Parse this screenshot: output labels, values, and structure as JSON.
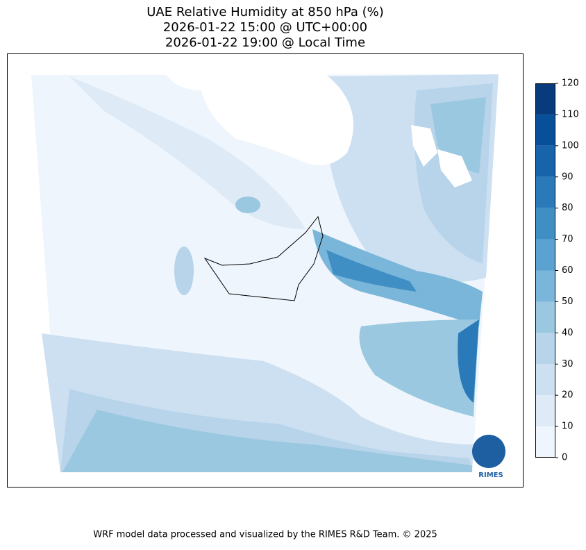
{
  "chart_data": {
    "type": "contour",
    "title": [
      "UAE Relative Humidity at 850 hPa (%)",
      "2026-01-22 15:00 @ UTC+00:00",
      "2026-01-22 19:00 @ Local Time"
    ],
    "colorbar": {
      "ylim": [
        0,
        120
      ],
      "yticks": [
        0,
        10,
        20,
        30,
        40,
        50,
        60,
        70,
        80,
        90,
        100,
        110,
        120
      ],
      "colors": [
        "#eff5fc",
        "#deebf7",
        "#cde0f1",
        "#b7d4ea",
        "#9ac8e0",
        "#7ab6d9",
        "#5ba2d0",
        "#3f8fc5",
        "#2a7ab9",
        "#1764ab",
        "#084f99",
        "#083b7c"
      ]
    },
    "logo_text": "RIMES",
    "footer": "WRF model data processed and visualized by the RIMES R&D Team. © 2025"
  }
}
